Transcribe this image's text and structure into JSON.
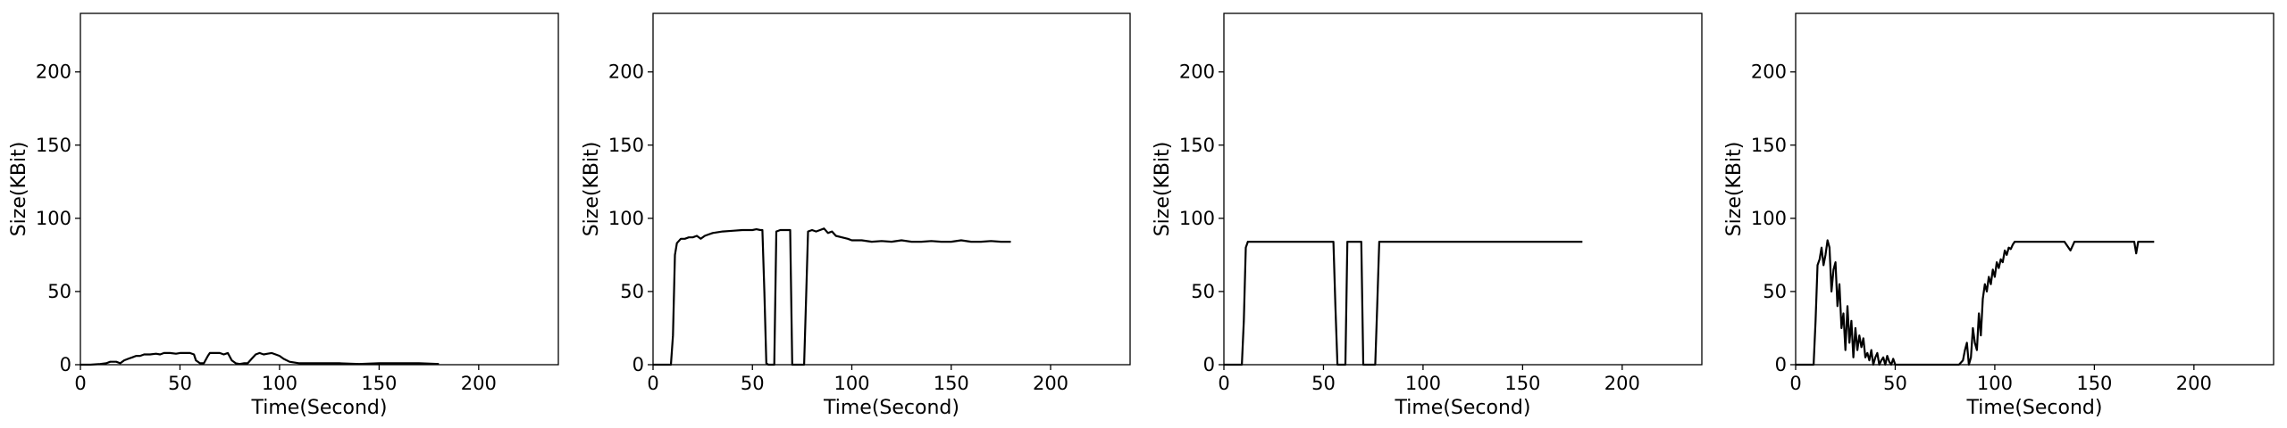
{
  "chart_data": [
    {
      "type": "line",
      "xlabel": "Time(Second)",
      "ylabel": "Size(KBit)",
      "xlim": [
        0,
        240
      ],
      "ylim": [
        0,
        240
      ],
      "xticks": [
        0,
        50,
        100,
        150,
        200
      ],
      "yticks": [
        0,
        50,
        100,
        150,
        200
      ],
      "grid": false,
      "series": [
        {
          "color": "#000000",
          "x": [
            0,
            5,
            10,
            13,
            15,
            18,
            20,
            22,
            24,
            26,
            28,
            30,
            32,
            35,
            38,
            40,
            42,
            45,
            48,
            50,
            53,
            55,
            57,
            58,
            60,
            62,
            64,
            65,
            67,
            69,
            70,
            72,
            74,
            76,
            78,
            80,
            82,
            84,
            86,
            88,
            90,
            92,
            94,
            96,
            98,
            100,
            102,
            105,
            110,
            120,
            130,
            140,
            150,
            160,
            170,
            180
          ],
          "y": [
            0,
            0,
            0.5,
            1,
            2,
            2,
            1,
            3,
            4,
            5,
            6,
            6,
            7,
            7,
            7.5,
            7,
            8,
            8,
            7.5,
            8,
            8,
            8,
            7,
            3,
            1,
            1,
            6,
            8,
            8,
            8,
            8,
            7,
            8,
            3,
            1,
            0.5,
            1,
            1,
            4,
            7,
            8,
            7,
            7.5,
            8,
            7,
            6,
            4,
            2,
            1,
            1,
            1,
            0.5,
            1,
            1,
            1,
            0.5
          ]
        }
      ]
    },
    {
      "type": "line",
      "xlabel": "Time(Second)",
      "ylabel": "Size(KBit)",
      "xlim": [
        0,
        240
      ],
      "ylim": [
        0,
        240
      ],
      "xticks": [
        0,
        50,
        100,
        150,
        200
      ],
      "yticks": [
        0,
        50,
        100,
        150,
        200
      ],
      "grid": false,
      "series": [
        {
          "color": "#000000",
          "x": [
            0,
            5,
            9,
            10,
            11,
            12,
            14,
            16,
            18,
            20,
            22,
            24,
            26,
            28,
            30,
            35,
            40,
            45,
            50,
            52,
            54,
            55,
            56,
            57,
            58,
            60,
            61,
            62,
            64,
            66,
            68,
            69,
            70,
            72,
            74,
            75,
            76,
            77,
            78,
            80,
            82,
            84,
            86,
            88,
            90,
            92,
            95,
            98,
            100,
            105,
            110,
            115,
            120,
            125,
            130,
            135,
            140,
            145,
            150,
            155,
            160,
            165,
            170,
            175,
            180
          ],
          "y": [
            0,
            0,
            0,
            20,
            75,
            83,
            86,
            86,
            87,
            87,
            88,
            86,
            88,
            89,
            90,
            91,
            91.5,
            92,
            92,
            92.5,
            92,
            92,
            50,
            1,
            0,
            0,
            0,
            91,
            92,
            92,
            92,
            92,
            0,
            0,
            0,
            0,
            0,
            45,
            91,
            92,
            91,
            92,
            93,
            90,
            91,
            88,
            87,
            86,
            85,
            85,
            84,
            84.5,
            84,
            85,
            84,
            84,
            84.5,
            84,
            84,
            85,
            84,
            84,
            84.5,
            84,
            84
          ]
        }
      ]
    },
    {
      "type": "line",
      "xlabel": "Time(Second)",
      "ylabel": "Size(KBit)",
      "xlim": [
        0,
        240
      ],
      "ylim": [
        0,
        240
      ],
      "xticks": [
        0,
        50,
        100,
        150,
        200
      ],
      "yticks": [
        0,
        50,
        100,
        150,
        200
      ],
      "grid": false,
      "series": [
        {
          "color": "#000000",
          "x": [
            0,
            5,
            9,
            10,
            11,
            12,
            14,
            18,
            22,
            26,
            30,
            35,
            40,
            45,
            50,
            53,
            55,
            56,
            57,
            58,
            60,
            61,
            62,
            64,
            66,
            68,
            69,
            70,
            72,
            74,
            75,
            76,
            77,
            78,
            80,
            85,
            90,
            95,
            100,
            110,
            120,
            130,
            140,
            150,
            160,
            170,
            180
          ],
          "y": [
            0,
            0,
            0,
            30,
            80,
            84,
            84,
            84,
            84,
            84,
            84,
            84,
            84,
            84,
            84,
            84,
            84,
            40,
            0,
            0,
            0,
            0,
            84,
            84,
            84,
            84,
            84,
            0,
            0,
            0,
            0,
            0,
            40,
            84,
            84,
            84,
            84,
            84,
            84,
            84,
            84,
            84,
            84,
            84,
            84,
            84,
            84
          ]
        }
      ]
    },
    {
      "type": "line",
      "xlabel": "Time(Second)",
      "ylabel": "Size(KBit)",
      "xlim": [
        0,
        240
      ],
      "ylim": [
        0,
        240
      ],
      "xticks": [
        0,
        50,
        100,
        150,
        200
      ],
      "yticks": [
        0,
        50,
        100,
        150,
        200
      ],
      "grid": false,
      "series": [
        {
          "color": "#000000",
          "x": [
            0,
            5,
            9,
            10,
            11,
            12,
            13,
            14,
            15,
            16,
            17,
            18,
            19,
            20,
            21,
            22,
            23,
            24,
            25,
            26,
            27,
            28,
            29,
            30,
            31,
            32,
            33,
            34,
            35,
            36,
            37,
            38,
            39,
            40,
            41,
            42,
            43,
            44,
            45,
            46,
            47,
            48,
            49,
            50,
            55,
            60,
            65,
            70,
            75,
            80,
            82,
            84,
            85,
            86,
            87,
            88,
            89,
            90,
            91,
            92,
            93,
            94,
            95,
            96,
            97,
            98,
            99,
            100,
            101,
            102,
            103,
            104,
            105,
            106,
            107,
            108,
            109,
            110,
            112,
            115,
            118,
            120,
            122,
            125,
            128,
            130,
            133,
            135,
            138,
            140,
            143,
            145,
            148,
            150,
            153,
            155,
            158,
            160,
            163,
            165,
            168,
            170,
            171,
            172,
            174,
            177,
            180
          ],
          "y": [
            0,
            0,
            0,
            30,
            68,
            72,
            80,
            68,
            75,
            85,
            80,
            50,
            65,
            70,
            40,
            55,
            25,
            35,
            10,
            40,
            15,
            30,
            5,
            25,
            10,
            20,
            12,
            18,
            5,
            8,
            3,
            10,
            0,
            5,
            8,
            0,
            3,
            5,
            0,
            6,
            2,
            0,
            4,
            0,
            0,
            0,
            0,
            0,
            0,
            0,
            0,
            3,
            10,
            15,
            0,
            5,
            25,
            15,
            10,
            35,
            20,
            45,
            55,
            50,
            60,
            55,
            65,
            60,
            70,
            66,
            72,
            70,
            78,
            75,
            80,
            79,
            82,
            84,
            84,
            84,
            84,
            84,
            84,
            84,
            84,
            84,
            84,
            84,
            78,
            84,
            84,
            84,
            84,
            84,
            84,
            84,
            84,
            84,
            84,
            84,
            84,
            84,
            76,
            84,
            84,
            84,
            84
          ]
        }
      ]
    }
  ]
}
